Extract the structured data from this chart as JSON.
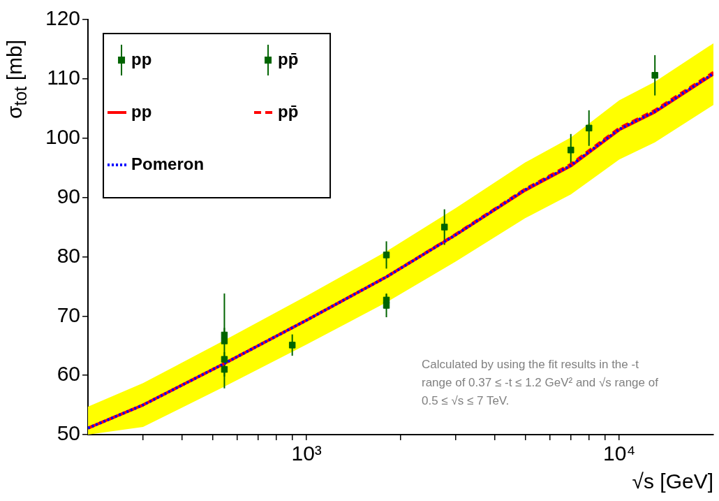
{
  "chart_data": {
    "type": "scatter",
    "xlabel": "√s [GeV]",
    "ylabel": "σ$_{tot}$ [mb]",
    "xlim": [
      200,
      20000
    ],
    "xticks": [
      {
        "value": 300,
        "label": null
      },
      {
        "value": 400,
        "label": null
      },
      {
        "value": 500,
        "label": null
      },
      {
        "value": 600,
        "label": null
      },
      {
        "value": 700,
        "label": null
      },
      {
        "value": 800,
        "label": null
      },
      {
        "value": 900,
        "label": null
      },
      {
        "value": 1000,
        "label": "10³"
      },
      {
        "value": 2000,
        "label": null
      },
      {
        "value": 3000,
        "label": null
      },
      {
        "value": 4000,
        "label": null
      },
      {
        "value": 5000,
        "label": null
      },
      {
        "value": 6000,
        "label": null
      },
      {
        "value": 7000,
        "label": null
      },
      {
        "value": 8000,
        "label": null
      },
      {
        "value": 9000,
        "label": null
      },
      {
        "value": 10000,
        "label": "10⁴"
      }
    ],
    "ylim": [
      50,
      120
    ],
    "yticks": [
      50,
      60,
      70,
      80,
      90,
      100,
      110,
      120
    ],
    "log": "x",
    "grid": false,
    "legend": "top left",
    "series": [
      {
        "name": "pp",
        "marker": "square",
        "color": "#006400",
        "x": [
          2760,
          7000,
          8000,
          13000
        ],
        "values": [
          85.0,
          98.0,
          101.7,
          110.6
        ],
        "errors": [
          3,
          2.7,
          3,
          3.4
        ]
      },
      {
        "name": "pp̄",
        "marker": "square",
        "color": "#006400",
        "x": [
          546,
          546,
          546,
          546,
          900,
          1800,
          1800,
          1800
        ],
        "values": [
          66.8,
          65.8,
          62.7,
          61.0,
          65.1,
          80.3,
          72.7,
          71.8
        ],
        "errors": [
          1.2,
          8,
          1.2,
          1.2,
          1.8,
          2.3,
          1,
          2
        ]
      },
      {
        "name": "pp",
        "type": "line",
        "line_style": "solid",
        "marker": "none",
        "color": "#ff0000",
        "x": [
          200,
          300,
          546,
          1000,
          1800,
          3000,
          5000,
          7000,
          10000,
          13000,
          20000
        ],
        "values": [
          51.1,
          55.0,
          62.0,
          69.3,
          76.6,
          83.7,
          91.2,
          95.3,
          101.4,
          104.4,
          110.8
        ],
        "lower": [
          50.0,
          51.3,
          58.1,
          65.2,
          72.3,
          79.2,
          86.5,
          90.5,
          96.4,
          99.3,
          105.6
        ],
        "upper": [
          54.7,
          58.7,
          65.9,
          73.4,
          80.9,
          88.2,
          95.9,
          100.1,
          106.4,
          109.5,
          116.0
        ]
      },
      {
        "name": "pp̄",
        "type": "line",
        "line_style": "dashed",
        "marker": "none",
        "color": "#ff0000",
        "x": [
          200,
          300,
          546,
          1000,
          1800,
          3000,
          5000,
          7000,
          10000,
          13000,
          20000
        ],
        "values": [
          51.1,
          55.0,
          62.0,
          69.3,
          76.6,
          83.8,
          91.4,
          95.6,
          101.7,
          104.7,
          111.1
        ]
      },
      {
        "name": "Pomeron",
        "type": "line",
        "line_style": "dotted",
        "marker": "none",
        "color": "#0000ff",
        "x": [
          200,
          300,
          546,
          1000,
          1800,
          3000,
          5000,
          7000,
          10000,
          13000,
          20000
        ],
        "values": [
          51.1,
          55.0,
          62.0,
          69.3,
          76.6,
          83.7,
          91.3,
          95.4,
          101.5,
          104.5,
          110.9
        ]
      }
    ],
    "annotations": [
      "Calculated by using the fit results in the -t range of 0.37 ≤ -t ≤ 1.2 GeV² and √s range of 0.5 ≤ √s ≤ 7 TeV."
    ]
  }
}
